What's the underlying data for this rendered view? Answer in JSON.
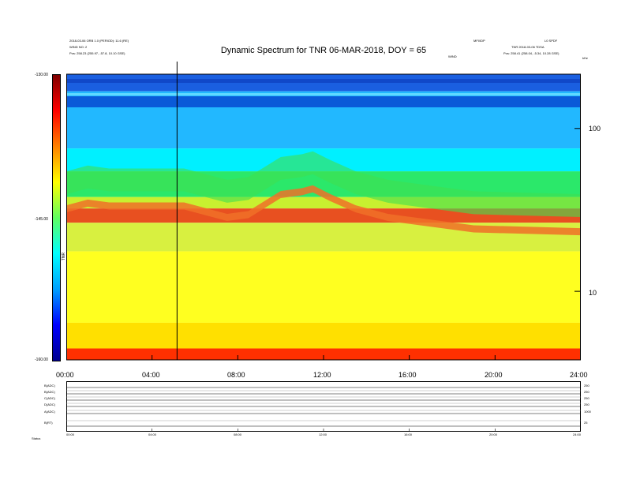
{
  "header": {
    "title": "Dynamic Spectrum for TNR 06-MAR-2018, DOY = 65",
    "left_line1": "2018-03-06 ORB 1.0 (PERIOD): 11.6 (RE)",
    "left_line2": "WIND NO: 2",
    "left_line3": "Pos: 258.23 (255.97, -57.8, 10.10 GSE)",
    "center_small": "WIND",
    "right_small1": "MFI/IDP",
    "right_small2": "L0 SPDF",
    "right_line2": "TNR 2018-03-06 TDSA",
    "right_line3": "Pos: 258.41 (258.04, -5.34, 10.28 GSE)",
    "right_unit": "kHz"
  },
  "colorbar": {
    "label": "TNR",
    "max_label": "-130.00",
    "mid_label": "-145.00",
    "min_label": "-160.00",
    "max": -130,
    "min": -160,
    "colors": [
      "#00008f",
      "#0000ff",
      "#00a0ff",
      "#00ffff",
      "#60ff60",
      "#ffff00",
      "#ff8000",
      "#ff0000",
      "#800000"
    ]
  },
  "chart_data": {
    "type": "heatmap",
    "title": "Dynamic Spectrum for TNR 06-MAR-2018, DOY = 65",
    "x_ticks": [
      "00:00",
      "04:00",
      "08:00",
      "12:00",
      "16:00",
      "20:00",
      "24:00"
    ],
    "x_range_hours": [
      0,
      24
    ],
    "y_scale": "log",
    "y_ticks": [
      "100",
      "10"
    ],
    "y_unit": "kHz",
    "colorbar_range": [
      -160,
      -130
    ],
    "marker_time": "05:10",
    "bands": [
      {
        "level_from_top": 0.0,
        "color": "#1a5fe0"
      },
      {
        "level_from_top": 0.06,
        "color": "#22b8ff"
      },
      {
        "level_from_top": 0.26,
        "color": "#00f0ff"
      },
      {
        "level_from_top": 0.34,
        "color": "#2be86a"
      },
      {
        "level_from_top": 0.43,
        "color": "#c8f030"
      },
      {
        "level_from_top": 0.47,
        "color": "#e85020"
      },
      {
        "level_from_top": 0.52,
        "color": "#d8f040"
      },
      {
        "level_from_top": 0.62,
        "color": "#ffff20"
      },
      {
        "level_from_top": 0.87,
        "color": "#ffe000"
      },
      {
        "level_from_top": 0.96,
        "color": "#ff3000"
      }
    ],
    "ridge_trace": [
      {
        "t": 0.0,
        "level": 0.47
      },
      {
        "t": 1.0,
        "level": 0.45
      },
      {
        "t": 2.0,
        "level": 0.46
      },
      {
        "t": 4.0,
        "level": 0.46
      },
      {
        "t": 5.5,
        "level": 0.46
      },
      {
        "t": 6.5,
        "level": 0.48
      },
      {
        "t": 7.5,
        "level": 0.5
      },
      {
        "t": 8.5,
        "level": 0.49
      },
      {
        "t": 10.0,
        "level": 0.42
      },
      {
        "t": 11.0,
        "level": 0.41
      },
      {
        "t": 11.5,
        "level": 0.4
      },
      {
        "t": 12.3,
        "level": 0.43
      },
      {
        "t": 13.5,
        "level": 0.47
      },
      {
        "t": 15.0,
        "level": 0.5
      },
      {
        "t": 17.0,
        "level": 0.52
      },
      {
        "t": 19.0,
        "level": 0.54
      },
      {
        "t": 24.0,
        "level": 0.55
      }
    ]
  },
  "lower_panel": {
    "x_ticks": [
      "00:00",
      "04:00",
      "08:00",
      "12:00",
      "16:00",
      "20:00",
      "24:00"
    ],
    "rows": [
      {
        "label": "B(ADC)",
        "right": "250"
      },
      {
        "label": "B(ADC)",
        "right": "250"
      },
      {
        "label": "C(ADC)",
        "right": "250"
      },
      {
        "label": "D(ADC)",
        "right": "250"
      },
      {
        "label": "A(ADC)",
        "right": "1000"
      },
      {
        "label": "B(RT)",
        "right": "25"
      }
    ],
    "bottom_label": "Status"
  }
}
